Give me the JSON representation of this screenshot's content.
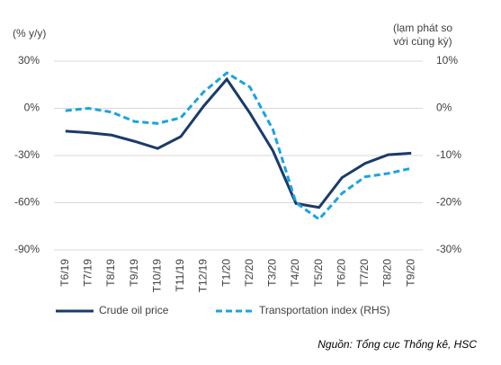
{
  "chart_data": {
    "type": "line",
    "y_label": "(% y/y)",
    "y2_label": [
      "(lạm phát so",
      "với cùng kỳ)"
    ],
    "source": "Nguồn: Tổng cục Thống kê, HSC",
    "categories": [
      "T6/19",
      "T7/19",
      "T8/19",
      "T9/19",
      "T10/19",
      "T11/19",
      "T12/19",
      "T1/20",
      "T2/20",
      "T3/20",
      "T4/20",
      "T5/20",
      "T6/20",
      "T7/20",
      "T8/20",
      "T9/20"
    ],
    "series": [
      {
        "name": "Crude oil price",
        "color": "#1b3a6b",
        "dashed": false,
        "values": [
          -14.5,
          -15.5,
          -17,
          -21,
          -25.5,
          -18,
          1.5,
          18.5,
          -3,
          -27,
          -60.5,
          -63,
          -44,
          -35,
          -29.5,
          -28.5
        ]
      },
      {
        "name": "Transportation index (RHS)",
        "color": "#1aa3e0",
        "dashed": true,
        "axis": "y2",
        "values": [
          -0.5,
          0,
          -0.8,
          -2.8,
          -3.2,
          -2,
          3.5,
          7.5,
          4.5,
          -4.5,
          -20,
          -23.5,
          -18,
          -14.5,
          -13.8,
          -12.7
        ]
      }
    ],
    "ylim": [
      -90,
      30
    ],
    "yticks": [
      {
        "value": 30,
        "label": "30%"
      },
      {
        "value": 0,
        "label": "0%"
      },
      {
        "value": -30,
        "label": "-30%"
      },
      {
        "value": -60,
        "label": "-60%"
      },
      {
        "value": -90,
        "label": "-90%"
      }
    ],
    "y2lim": [
      -30,
      10
    ],
    "y2ticks": [
      {
        "value": 10,
        "label": "10%"
      },
      {
        "value": 0,
        "label": "0%"
      },
      {
        "value": -10,
        "label": "-10%"
      },
      {
        "value": -20,
        "label": "-20%"
      },
      {
        "value": -30,
        "label": "-30%"
      }
    ],
    "grid": true
  }
}
